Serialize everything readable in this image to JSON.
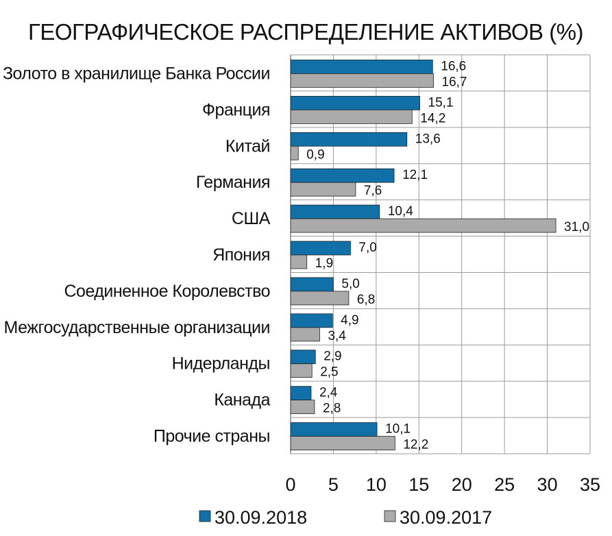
{
  "chart_data": {
    "type": "bar",
    "orientation": "horizontal",
    "title": "ГЕОГРАФИЧЕСКОЕ РАСПРЕДЕЛЕНИЕ АКТИВОВ (%)",
    "categories": [
      "Золото в хранилище Банка России",
      "Франция",
      "Китай",
      "Германия",
      "США",
      "Япония",
      "Соединенное Королевство",
      "Межгосударственные организации",
      "Нидерланды",
      "Канада",
      "Прочие страны"
    ],
    "series": [
      {
        "name": "30.09.2018",
        "color": "#1270a8",
        "values": [
          16.6,
          15.1,
          13.6,
          12.1,
          10.4,
          7.0,
          5.0,
          4.9,
          2.9,
          2.4,
          10.1
        ],
        "labels": [
          "16,6",
          "15,1",
          "13,6",
          "12,1",
          "10,4",
          "7,0",
          "5,0",
          "4,9",
          "2,9",
          "2,4",
          "10,1"
        ]
      },
      {
        "name": "30.09.2017",
        "color": "#aaaaaa",
        "values": [
          16.7,
          14.2,
          0.9,
          7.6,
          31.0,
          1.9,
          6.8,
          3.4,
          2.5,
          2.8,
          12.2
        ],
        "labels": [
          "16,7",
          "14,2",
          "0,9",
          "7,6",
          "31,0",
          "1,9",
          "6,8",
          "3,4",
          "2,5",
          "2,8",
          "12,2"
        ]
      }
    ],
    "xlim": [
      0,
      35
    ],
    "xticks": [
      "0",
      "5",
      "10",
      "15",
      "20",
      "25",
      "30",
      "35"
    ],
    "grid": true,
    "legend_position": "bottom"
  }
}
